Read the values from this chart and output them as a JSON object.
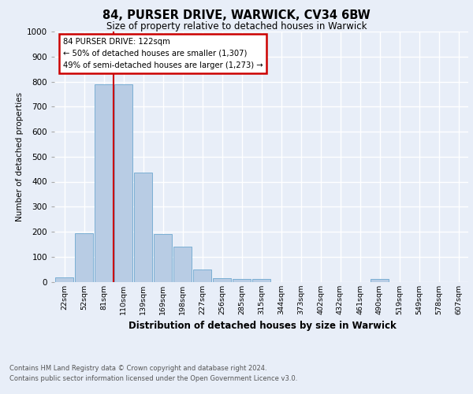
{
  "title1": "84, PURSER DRIVE, WARWICK, CV34 6BW",
  "title2": "Size of property relative to detached houses in Warwick",
  "xlabel": "Distribution of detached houses by size in Warwick",
  "ylabel": "Number of detached properties",
  "categories": [
    "22sqm",
    "52sqm",
    "81sqm",
    "110sqm",
    "139sqm",
    "169sqm",
    "198sqm",
    "227sqm",
    "256sqm",
    "285sqm",
    "315sqm",
    "344sqm",
    "373sqm",
    "402sqm",
    "432sqm",
    "461sqm",
    "490sqm",
    "519sqm",
    "549sqm",
    "578sqm",
    "607sqm"
  ],
  "values": [
    18,
    195,
    790,
    790,
    435,
    190,
    140,
    50,
    15,
    12,
    10,
    0,
    0,
    0,
    0,
    0,
    10,
    0,
    0,
    0,
    0
  ],
  "bar_color": "#b8cce4",
  "bar_edge_color": "#7bafd4",
  "annotation_line1": "84 PURSER DRIVE: 122sqm",
  "annotation_line2": "← 50% of detached houses are smaller (1,307)",
  "annotation_line3": "49% of semi-detached houses are larger (1,273) →",
  "annotation_box_color": "#ffffff",
  "annotation_box_edge_color": "#cc0000",
  "vline_color": "#cc0000",
  "ylim": [
    0,
    1000
  ],
  "yticks": [
    0,
    100,
    200,
    300,
    400,
    500,
    600,
    700,
    800,
    900,
    1000
  ],
  "background_color": "#e8eef8",
  "plot_bg_color": "#e8eef8",
  "grid_color": "#ffffff",
  "footnote1": "Contains HM Land Registry data © Crown copyright and database right 2024.",
  "footnote2": "Contains public sector information licensed under the Open Government Licence v3.0."
}
